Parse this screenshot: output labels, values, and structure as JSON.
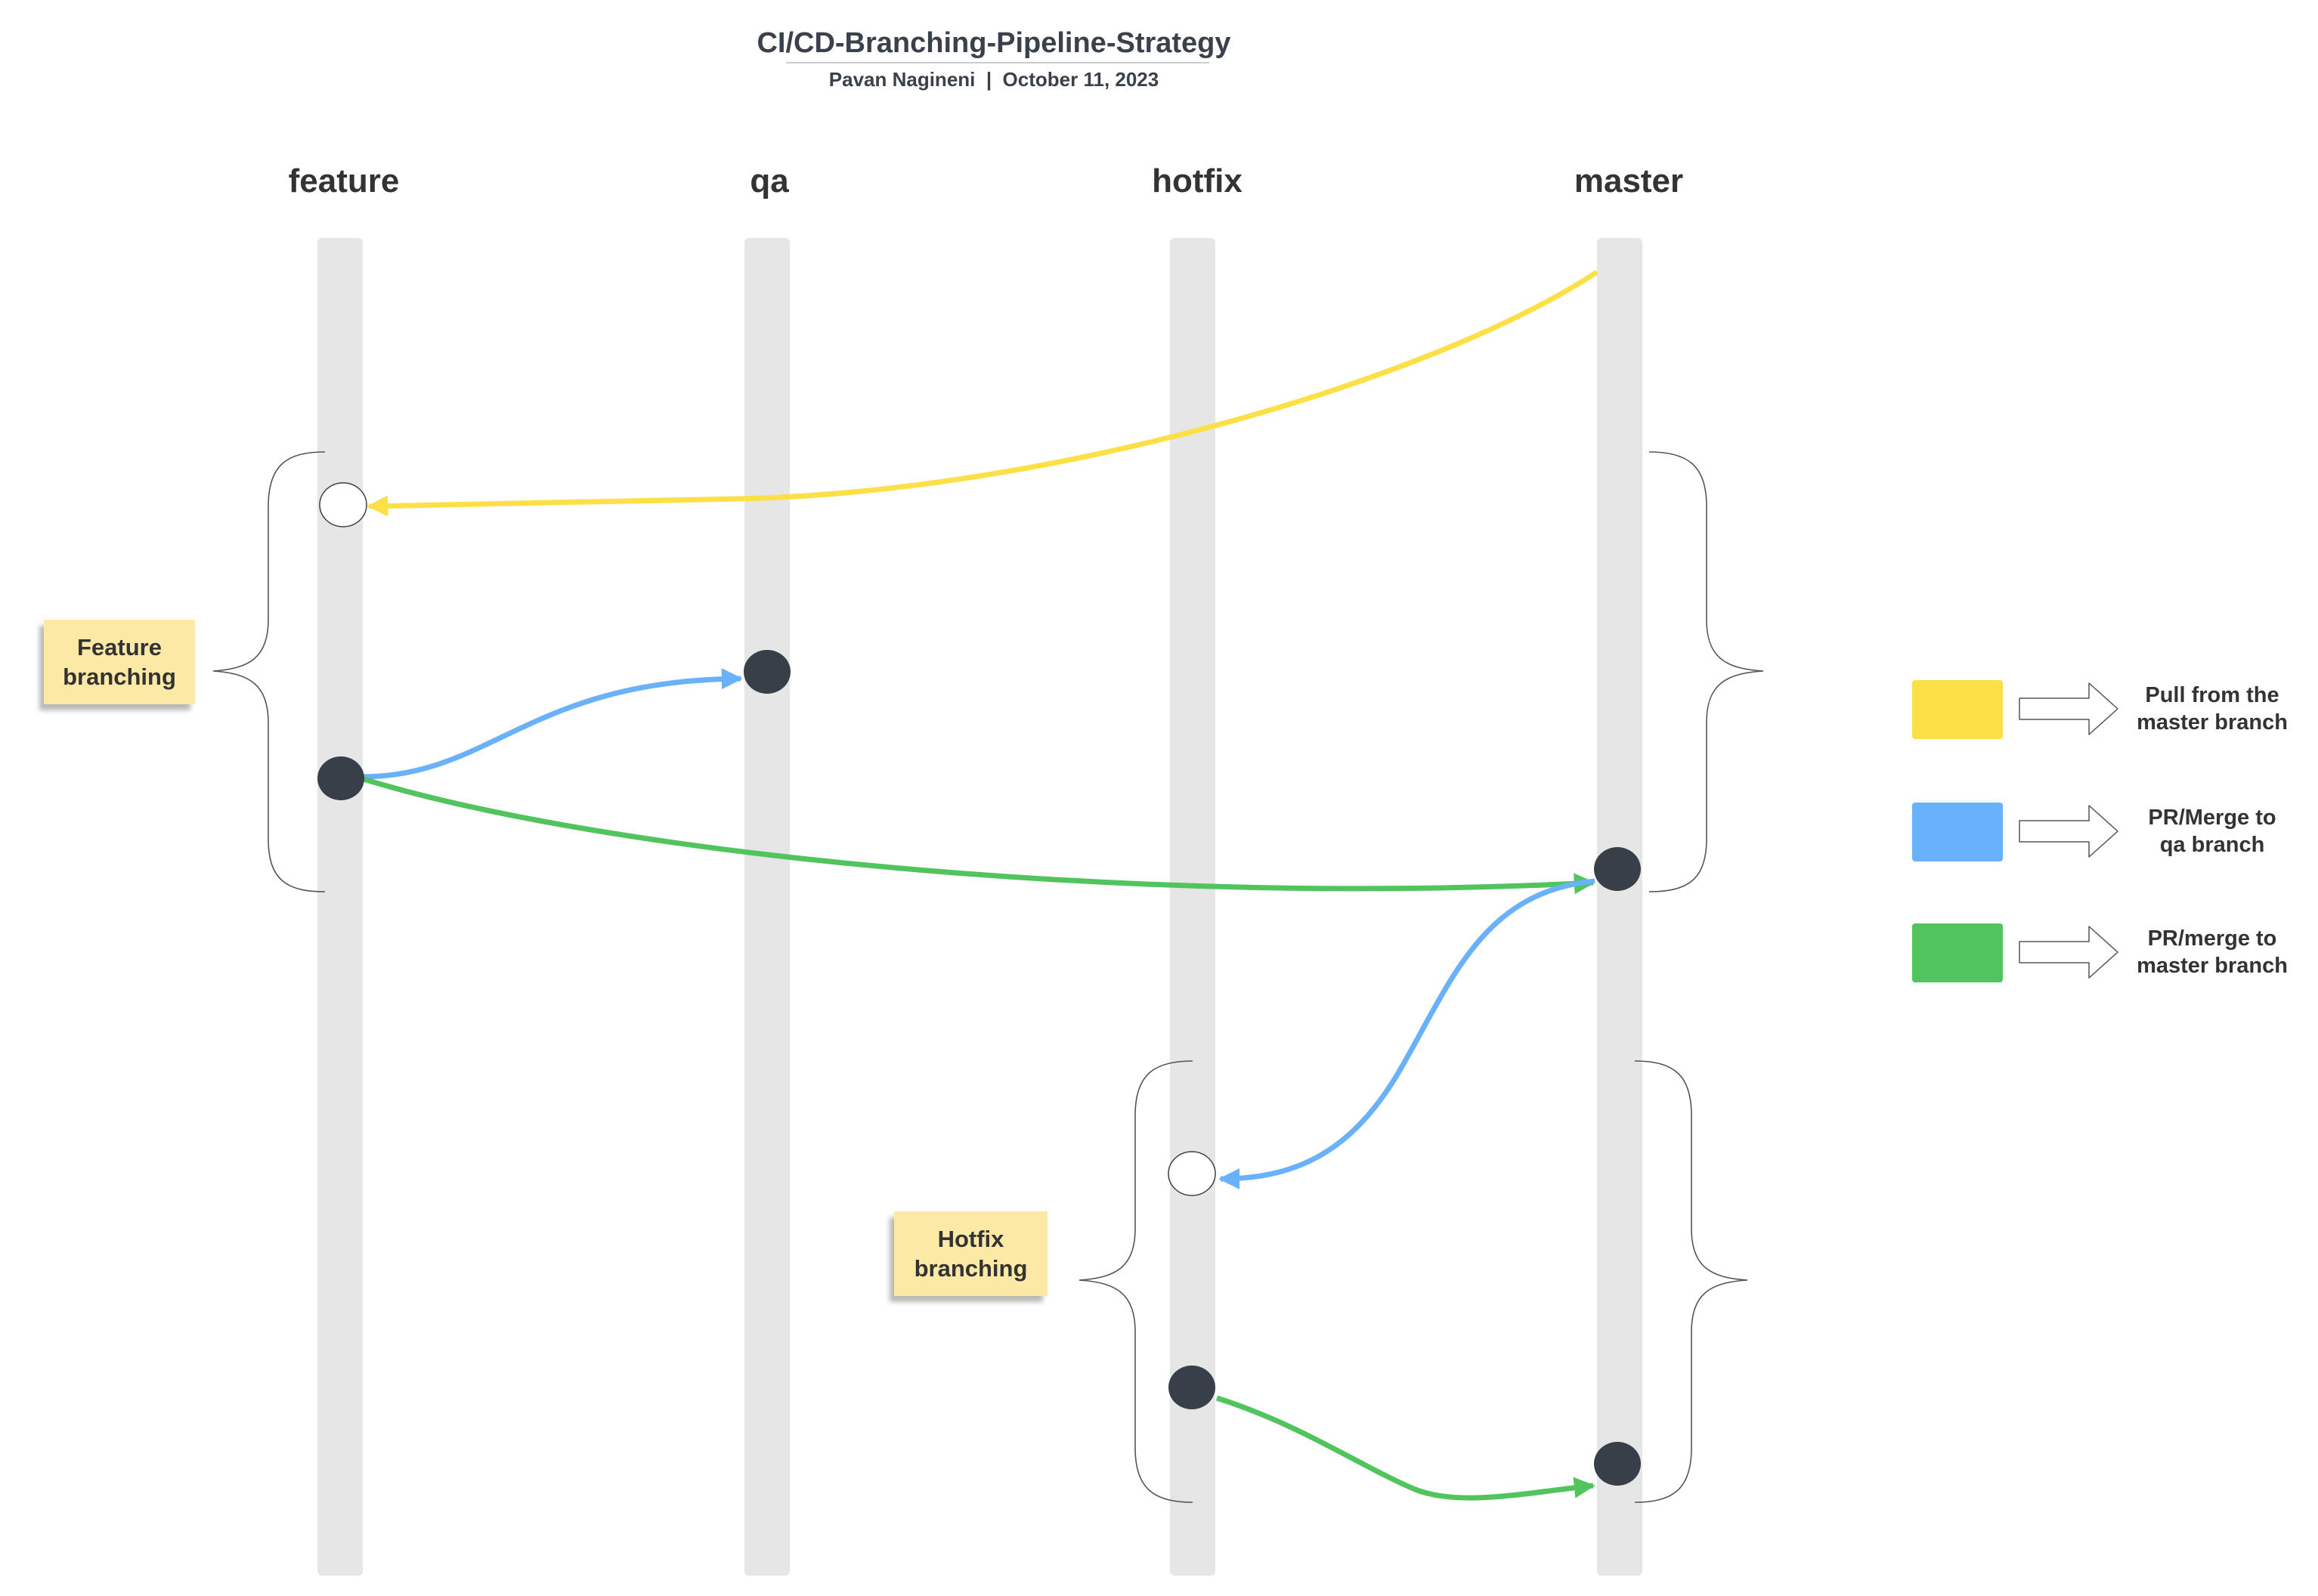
{
  "header": {
    "title": "CI/CD-Branching-Pipeline-Strategy",
    "subtitle": "Pavan Nagineni  |  October 11, 2023"
  },
  "branches": {
    "feature": "feature",
    "qa": "qa",
    "hotfix": "hotfix",
    "master": "master"
  },
  "notes": {
    "feature_branching": "Feature\nbranching",
    "hotfix_branching": "Hotfix\nbranching"
  },
  "legend": {
    "pull": {
      "label": "Pull from the\nmaster branch",
      "color": "#fde047"
    },
    "qa": {
      "label": "PR/Merge to\nqa branch",
      "color": "#6ab1fb"
    },
    "master": {
      "label": "PR/merge to\nmaster branch",
      "color": "#52c45e"
    }
  },
  "colors": {
    "lane": "#e6e6e6",
    "commit": "#393f48",
    "pull": "#fde047",
    "pr_qa": "#6ab1fb",
    "pr_master": "#52c45e"
  }
}
